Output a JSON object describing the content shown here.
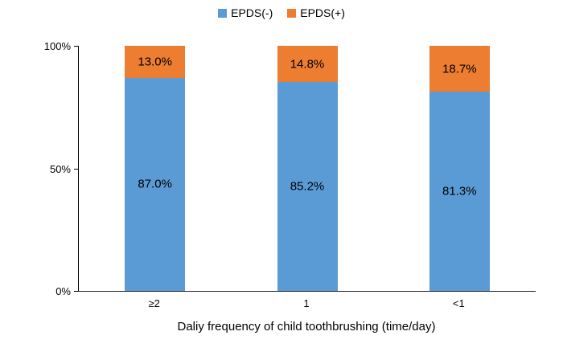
{
  "chart_data": {
    "type": "bar",
    "stacked": true,
    "percent_stacked": true,
    "title": "",
    "xlabel": "Daliy frequency of child toothbrushing (time/day)",
    "ylabel": "",
    "ylim": [
      0,
      100
    ],
    "grid": false,
    "legend_position": "top",
    "categories": [
      "≥2",
      "1",
      "<1"
    ],
    "series": [
      {
        "name": "EPDS(-)",
        "color": "#5B9BD5",
        "values": [
          87.0,
          85.2,
          81.3
        ],
        "labels": [
          "87.0%",
          "85.2%",
          "81.3%"
        ]
      },
      {
        "name": "EPDS(+)",
        "color": "#ED7D31",
        "values": [
          13.0,
          14.8,
          18.7
        ],
        "labels": [
          "13.0%",
          "14.8%",
          "18.7%"
        ]
      }
    ],
    "yticks": [
      {
        "value": 0,
        "label": "0%"
      },
      {
        "value": 50,
        "label": "50%"
      },
      {
        "value": 100,
        "label": "100%"
      }
    ]
  }
}
